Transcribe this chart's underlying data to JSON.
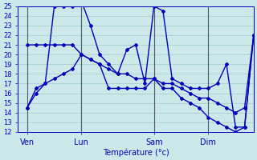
{
  "xlabel": "Température (°c)",
  "background_color": "#cce8e8",
  "grid_color": "#aad4d4",
  "line_color": "#0000bb",
  "vline_color": "#555577",
  "ylim": [
    12,
    25
  ],
  "yticks": [
    12,
    13,
    14,
    15,
    16,
    17,
    18,
    19,
    20,
    21,
    22,
    23,
    24,
    25
  ],
  "day_labels": [
    "Ven",
    "Lun",
    "Sam",
    "Dim"
  ],
  "day_positions": [
    1,
    7,
    15,
    21
  ],
  "xlim": [
    0,
    26
  ],
  "series1": {
    "x": [
      1,
      2,
      3,
      4,
      5,
      6,
      7,
      8,
      9,
      10,
      11,
      12,
      13,
      14,
      15,
      16,
      17,
      18,
      19,
      20,
      21,
      22,
      23,
      24,
      25,
      26
    ],
    "y": [
      14.5,
      16.5,
      17.0,
      25.0,
      25.0,
      25.0,
      25.5,
      23.0,
      20.0,
      19.0,
      18.0,
      20.5,
      21.0,
      17.0,
      25.0,
      24.5,
      17.5,
      17.0,
      16.5,
      16.5,
      16.5,
      17.0,
      19.0,
      12.5,
      12.5,
      22.0
    ]
  },
  "series2": {
    "x": [
      1,
      2,
      3,
      4,
      5,
      6,
      7,
      8,
      9,
      10,
      11,
      12,
      13,
      14,
      15,
      16,
      17,
      18,
      19,
      20,
      21,
      22,
      23,
      24,
      25,
      26
    ],
    "y": [
      21.0,
      21.0,
      21.0,
      21.0,
      21.0,
      21.0,
      20.0,
      19.5,
      19.0,
      18.5,
      18.0,
      18.0,
      17.5,
      17.5,
      17.5,
      17.0,
      17.0,
      16.5,
      16.0,
      15.5,
      15.5,
      15.0,
      14.5,
      14.0,
      14.5,
      22.0
    ]
  },
  "series3": {
    "x": [
      1,
      2,
      3,
      4,
      5,
      6,
      7,
      8,
      9,
      10,
      11,
      12,
      13,
      14,
      15,
      16,
      17,
      18,
      19,
      20,
      21,
      22,
      23,
      24,
      25,
      26
    ],
    "y": [
      14.5,
      16.0,
      17.0,
      17.5,
      18.0,
      18.5,
      20.0,
      19.5,
      19.0,
      16.5,
      16.5,
      16.5,
      16.5,
      16.5,
      17.5,
      16.5,
      16.5,
      15.5,
      15.0,
      14.5,
      13.5,
      13.0,
      12.5,
      12.0,
      12.5,
      22.0
    ]
  }
}
